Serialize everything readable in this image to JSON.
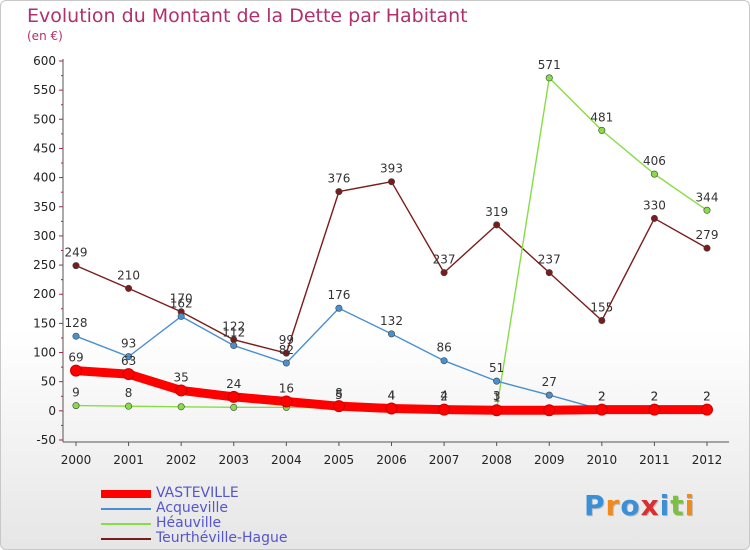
{
  "title": "Evolution du Montant de la Dette par Habitant",
  "subtitle": "(en €)",
  "logo_text": "Proxiti",
  "chart_data": {
    "type": "line",
    "x": [
      2000,
      2001,
      2002,
      2003,
      2004,
      2005,
      2006,
      2007,
      2008,
      2009,
      2010,
      2011,
      2012
    ],
    "ylim": [
      -50,
      600
    ],
    "yticks": [
      -50,
      0,
      50,
      100,
      150,
      200,
      250,
      300,
      350,
      400,
      450,
      500,
      550,
      600
    ],
    "grid": false,
    "legend_position": "bottom-left",
    "series": [
      {
        "name": "VASTEVILLE",
        "color": "#ff0000",
        "values": [
          69,
          63,
          35,
          24,
          16,
          8,
          4,
          2,
          1,
          1,
          2,
          2,
          2
        ],
        "labels": [
          "69",
          "63",
          "35",
          "24",
          "16",
          "8",
          "4",
          "2",
          "1",
          "",
          "2",
          "2",
          "2"
        ]
      },
      {
        "name": "Acqueville",
        "color": "#4a90d0",
        "values": [
          128,
          93,
          162,
          112,
          82,
          176,
          132,
          86,
          51,
          27,
          2,
          2,
          2
        ],
        "labels": [
          "128",
          "93",
          "162",
          "112",
          "82",
          "176",
          "132",
          "86",
          "51",
          "27",
          "2",
          "2",
          "2"
        ]
      },
      {
        "name": "Héauville",
        "color": "#88dd44",
        "values": [
          9,
          8,
          7,
          6,
          6,
          5,
          4,
          4,
          3,
          571,
          481,
          406,
          344
        ],
        "labels": [
          "9",
          "8",
          "",
          "",
          "",
          "5",
          "4",
          "4",
          "3",
          "571",
          "481",
          "406",
          "344"
        ]
      },
      {
        "name": "Teurthéville-Hague",
        "color": "#7a1c1c",
        "values": [
          249,
          210,
          170,
          122,
          99,
          376,
          393,
          237,
          319,
          237,
          155,
          330,
          279
        ],
        "labels": [
          "249",
          "210",
          "170",
          "122",
          "99",
          "376",
          "393",
          "237",
          "319",
          "237",
          "155",
          "330",
          "279"
        ]
      }
    ]
  }
}
